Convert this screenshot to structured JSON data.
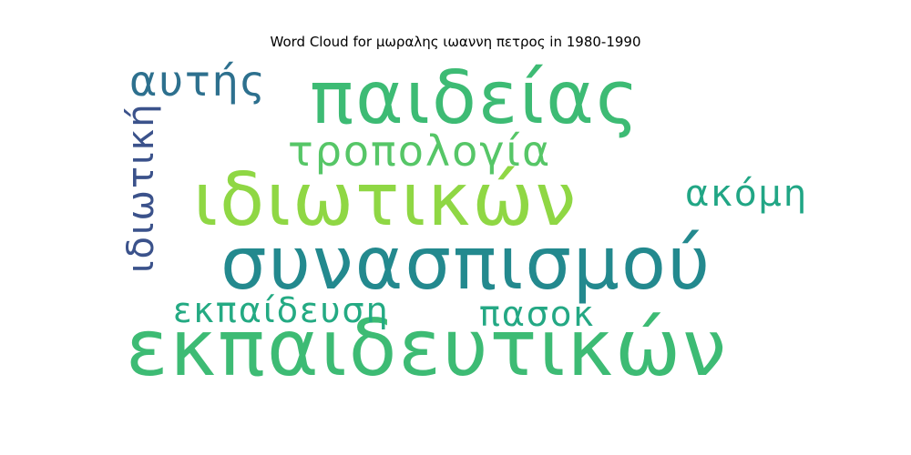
{
  "chart_data": {
    "type": "wordcloud",
    "title": "Word Cloud for μωραλης ιωαννη πετρος in 1980-1990",
    "words": [
      {
        "text": "εκπαιδευτικών",
        "color": "#3dbb74"
      },
      {
        "text": "ιδιωτικών",
        "color": "#8fd744"
      },
      {
        "text": "συνασπισμού",
        "color": "#23898e"
      },
      {
        "text": "παιδείας",
        "color": "#3dbb74"
      },
      {
        "text": "τροπολογία",
        "color": "#56c667"
      },
      {
        "text": "αυτής",
        "color": "#2d708e"
      },
      {
        "text": "ιδιωτική",
        "color": "#3b528b"
      },
      {
        "text": "ακόμη",
        "color": "#21a685"
      },
      {
        "text": "εκπαίδευση",
        "color": "#24aa83"
      },
      {
        "text": "πασοκ",
        "color": "#24a884"
      }
    ]
  }
}
